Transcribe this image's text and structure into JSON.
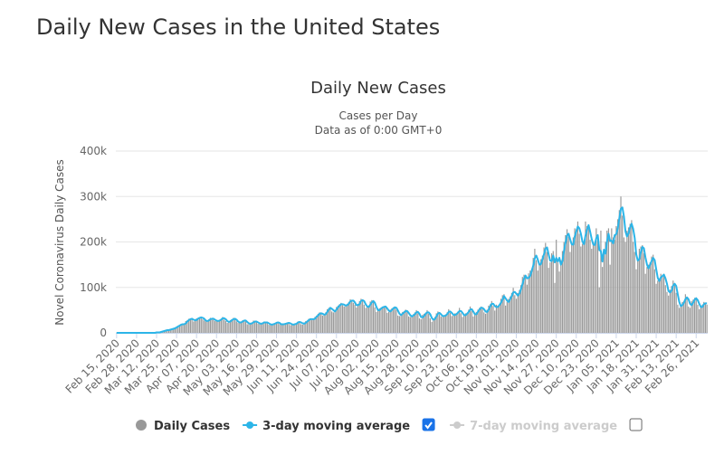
{
  "header": {
    "title": "Daily New Cases in the United States"
  },
  "chart_data": {
    "type": "bar",
    "title": "Daily New Cases",
    "subtitle": [
      "Cases per Day",
      "Data as of 0:00 GMT+0"
    ],
    "y_label": "Novel Coronavirus Daily Cases",
    "ylim": [
      0,
      400000
    ],
    "yticks": [
      0,
      {
        "value": 100000,
        "label": "100k"
      },
      {
        "value": 200000,
        "label": "200k"
      },
      {
        "value": 300000,
        "label": "300k"
      },
      {
        "value": 400000,
        "label": "400k"
      }
    ],
    "grid": true,
    "categories": [
      "Feb 15, 2020",
      null,
      null,
      null,
      null,
      null,
      null,
      null,
      null,
      null,
      null,
      null,
      null,
      "Feb 28, 2020",
      null,
      null,
      null,
      null,
      null,
      null,
      null,
      null,
      null,
      null,
      null,
      null,
      "Mar 12, 2020",
      null,
      null,
      null,
      null,
      null,
      null,
      null,
      null,
      null,
      null,
      null,
      null,
      "Mar 25, 2020",
      null,
      null,
      null,
      null,
      null,
      null,
      null,
      null,
      null,
      null,
      null,
      null,
      "Apr 07, 2020",
      null,
      null,
      null,
      null,
      null,
      null,
      null,
      null,
      null,
      null,
      null,
      null,
      "Apr 20, 2020",
      null,
      null,
      null,
      null,
      null,
      null,
      null,
      null,
      null,
      null,
      null,
      null,
      "May 03, 2020",
      null,
      null,
      null,
      null,
      null,
      null,
      null,
      null,
      null,
      null,
      null,
      null,
      "May 16, 2020",
      null,
      null,
      null,
      null,
      null,
      null,
      null,
      null,
      null,
      null,
      null,
      null,
      "May 29, 2020",
      null,
      null,
      null,
      null,
      null,
      null,
      null,
      null,
      null,
      null,
      null,
      null,
      "Jun 11, 2020",
      null,
      null,
      null,
      null,
      null,
      null,
      null,
      null,
      null,
      null,
      null,
      null,
      "Jun 24, 2020",
      null,
      null,
      null,
      null,
      null,
      null,
      null,
      null,
      null,
      null,
      null,
      null,
      "Jul 07, 2020",
      null,
      null,
      null,
      null,
      null,
      null,
      null,
      null,
      null,
      null,
      null,
      null,
      "Jul 20, 2020",
      null,
      null,
      null,
      null,
      null,
      null,
      null,
      null,
      null,
      null,
      null,
      null,
      "Aug 02, 2020",
      null,
      null,
      null,
      null,
      null,
      null,
      null,
      null,
      null,
      null,
      null,
      null,
      "Aug 15, 2020",
      null,
      null,
      null,
      null,
      null,
      null,
      null,
      null,
      null,
      null,
      null,
      null,
      "Aug 28, 2020",
      null,
      null,
      null,
      null,
      null,
      null,
      null,
      null,
      null,
      null,
      null,
      null,
      "Sep 10, 2020",
      null,
      null,
      null,
      null,
      null,
      null,
      null,
      null,
      null,
      null,
      null,
      null,
      "Sep 23, 2020",
      null,
      null,
      null,
      null,
      null,
      null,
      null,
      null,
      null,
      null,
      null,
      null,
      "Oct 06, 2020",
      null,
      null,
      null,
      null,
      null,
      null,
      null,
      null,
      null,
      null,
      null,
      null,
      "Oct 19, 2020",
      null,
      null,
      null,
      null,
      null,
      null,
      null,
      null,
      null,
      null,
      null,
      null,
      "Nov 01, 2020",
      null,
      null,
      null,
      null,
      null,
      null,
      null,
      null,
      null,
      null,
      null,
      null,
      "Nov 14, 2020",
      null,
      null,
      null,
      null,
      null,
      null,
      null,
      null,
      null,
      null,
      null,
      null,
      "Nov 27, 2020",
      null,
      null,
      null,
      null,
      null,
      null,
      null,
      null,
      null,
      null,
      null,
      null,
      "Dec 10, 2020",
      null,
      null,
      null,
      null,
      null,
      null,
      null,
      null,
      null,
      null,
      null,
      null,
      "Dec 23, 2020",
      null,
      null,
      null,
      null,
      null,
      null,
      null,
      null,
      null,
      null,
      null,
      null,
      "Jan 05, 2021",
      null,
      null,
      null,
      null,
      null,
      null,
      null,
      null,
      null,
      null,
      null,
      null,
      "Jan 18, 2021",
      null,
      null,
      null,
      null,
      null,
      null,
      null,
      null,
      null,
      null,
      null,
      null,
      "Jan 31, 2021",
      null,
      null,
      null,
      null,
      null,
      null,
      null,
      null,
      null,
      null,
      null,
      null,
      "Feb 13, 2021",
      null,
      null,
      null,
      null,
      null,
      null,
      null,
      null,
      null,
      null,
      null,
      null,
      "Feb 26, 2021",
      null,
      null,
      null,
      null,
      null,
      null,
      null
    ],
    "series": [
      {
        "name": "Daily Cases",
        "type": "bar",
        "color": "#999999",
        "values": [
          0,
          0,
          0,
          0,
          0,
          0,
          0,
          0,
          0,
          0,
          0,
          0,
          0,
          0,
          0,
          0,
          0,
          0,
          0,
          0,
          0,
          0,
          0,
          0,
          0,
          1000,
          1000,
          1000,
          2000,
          3000,
          4000,
          5000,
          6000,
          6000,
          7000,
          9000,
          8000,
          10000,
          12000,
          14000,
          16000,
          18000,
          20000,
          18000,
          20000,
          26000,
          28000,
          31000,
          32000,
          31000,
          25000,
          28000,
          32000,
          33000,
          34000,
          35000,
          30000,
          27000,
          25000,
          26000,
          30000,
          33000,
          31000,
          29000,
          26000,
          26000,
          26000,
          29000,
          31000,
          35000,
          29000,
          26000,
          22000,
          25000,
          28000,
          30000,
          33000,
          29000,
          25000,
          22000,
          23000,
          25000,
          28000,
          27000,
          25000,
          19000,
          19000,
          21000,
          22000,
          27000,
          25000,
          24000,
          20000,
          20000,
          21000,
          22000,
          25000,
          23000,
          22000,
          18000,
          17000,
          19000,
          20000,
          22000,
          24000,
          22000,
          19000,
          17000,
          20000,
          20000,
          21000,
          23000,
          22000,
          17000,
          18000,
          18000,
          21000,
          22000,
          25000,
          25000,
          19000,
          18000,
          23000,
          26000,
          27000,
          31000,
          32000,
          28000,
          31000,
          35000,
          38000,
          42000,
          45000,
          43000,
          38000,
          40000,
          45000,
          52000,
          55000,
          57000,
          47000,
          45000,
          50000,
          57000,
          60000,
          63000,
          66000,
          61000,
          58000,
          60000,
          64000,
          68000,
          74000,
          72000,
          66000,
          62000,
          56000,
          64000,
          70000,
          75000,
          72000,
          62000,
          55000,
          57000,
          60000,
          69000,
          72000,
          70000,
          56000,
          46000,
          49000,
          54000,
          56000,
          57000,
          59000,
          58000,
          44000,
          46000,
          51000,
          54000,
          56000,
          58000,
          51000,
          38000,
          37000,
          42000,
          46000,
          47000,
          51000,
          46000,
          36000,
          35000,
          38000,
          41000,
          45000,
          50000,
          43000,
          32000,
          30000,
          40000,
          42000,
          44000,
          50000,
          42000,
          32000,
          24000,
          30000,
          35000,
          43000,
          47000,
          41000,
          36000,
          35000,
          39000,
          40000,
          45000,
          52000,
          44000,
          37000,
          38000,
          43000,
          43000,
          47000,
          55000,
          43000,
          35000,
          38000,
          43000,
          44000,
          51000,
          58000,
          48000,
          36000,
          40000,
          46000,
          51000,
          55000,
          58000,
          53000,
          45000,
          42000,
          51000,
          60000,
          63000,
          70000,
          59000,
          49000,
          62000,
          60000,
          62000,
          75000,
          83000,
          85000,
          60000,
          68000,
          75000,
          80000,
          88000,
          99000,
          83000,
          75000,
          88000,
          94000,
          105000,
          123000,
          128000,
          126000,
          106000,
          131000,
          137000,
          141000,
          165000,
          185000,
          160000,
          137000,
          154000,
          162000,
          170000,
          188000,
          198000,
          178000,
          143000,
          155000,
          175000,
          180000,
          110000,
          205000,
          155000,
          135000,
          160000,
          180000,
          200000,
          215000,
          228000,
          212000,
          178000,
          195000,
          210000,
          230000,
          228000,
          245000,
          218000,
          190000,
          196000,
          200000,
          245000,
          235000,
          230000,
          205000,
          185000,
          195000,
          200000,
          230000,
          215000,
          100000,
          225000,
          145000,
          178000,
          200000,
          225000,
          230000,
          150000,
          230000,
          210000,
          205000,
          235000,
          250000,
          270000,
          300000,
          258000,
          210000,
          200000,
          225000,
          232000,
          240000,
          248000,
          200000,
          178000,
          140000,
          160000,
          185000,
          190000,
          193000,
          175000,
          130000,
          145000,
          150000,
          155000,
          168000,
          172000,
          140000,
          108000,
          115000,
          120000,
          130000,
          125000,
          130000,
          105000,
          90000,
          82000,
          95000,
          103000,
          115000,
          105000,
          88000,
          62000,
          55000,
          60000,
          68000,
          70000,
          85000,
          78000,
          58000,
          55000,
          70000,
          73000,
          77000,
          78000,
          62000,
          52000,
          58000,
          62000,
          68000,
          66000,
          62000
        ]
      },
      {
        "name": "3-day moving average",
        "type": "line",
        "color": "#2cb5e8",
        "visible": true,
        "values": [
          0,
          0,
          0,
          0,
          0,
          0,
          0,
          0,
          0,
          0,
          0,
          0,
          0,
          0,
          0,
          0,
          0,
          0,
          0,
          0,
          0,
          0,
          0,
          0,
          0,
          0,
          1000,
          1000,
          1000,
          2000,
          3000,
          4000,
          5000,
          6000,
          6000,
          7000,
          8000,
          9000,
          10000,
          12000,
          14000,
          16000,
          18000,
          19000,
          19000,
          21000,
          25000,
          28000,
          30000,
          31000,
          29000,
          28000,
          28000,
          31000,
          33000,
          34000,
          33000,
          31000,
          27000,
          26000,
          27000,
          30000,
          31000,
          31000,
          29000,
          27000,
          26000,
          27000,
          29000,
          32000,
          32000,
          30000,
          26000,
          24000,
          25000,
          28000,
          30000,
          31000,
          29000,
          25000,
          23000,
          23000,
          25000,
          27000,
          27000,
          24000,
          21000,
          20000,
          21000,
          23000,
          25000,
          25000,
          23000,
          21000,
          20000,
          21000,
          23000,
          23000,
          23000,
          21000,
          19000,
          18000,
          19000,
          20000,
          22000,
          23000,
          22000,
          19000,
          19000,
          19000,
          20000,
          21000,
          22000,
          21000,
          19000,
          18000,
          19000,
          20000,
          23000,
          24000,
          23000,
          21000,
          20000,
          22000,
          25000,
          28000,
          30000,
          30000,
          30000,
          31000,
          35000,
          38000,
          42000,
          43000,
          42000,
          40000,
          41000,
          46000,
          51000,
          55000,
          53000,
          50000,
          47000,
          51000,
          56000,
          60000,
          63000,
          63000,
          62000,
          60000,
          61000,
          64000,
          69000,
          71000,
          71000,
          67000,
          61000,
          61000,
          63000,
          70000,
          72000,
          70000,
          63000,
          58000,
          57000,
          62000,
          67000,
          70000,
          66000,
          57000,
          50000,
          50000,
          53000,
          56000,
          57000,
          58000,
          54000,
          49000,
          47000,
          50000,
          54000,
          56000,
          55000,
          49000,
          42000,
          39000,
          42000,
          45000,
          48000,
          48000,
          44000,
          39000,
          36000,
          38000,
          41000,
          45000,
          46000,
          42000,
          35000,
          34000,
          37000,
          42000,
          45000,
          45000,
          41000,
          33000,
          29000,
          30000,
          36000,
          42000,
          44000,
          41000,
          37000,
          37000,
          38000,
          41000,
          46000,
          47000,
          44000,
          40000,
          39000,
          41000,
          44000,
          48000,
          48000,
          44000,
          39000,
          39000,
          42000,
          46000,
          51000,
          52000,
          47000,
          41000,
          41000,
          46000,
          51000,
          55000,
          55000,
          52000,
          47000,
          46000,
          51000,
          58000,
          64000,
          64000,
          59000,
          57000,
          57000,
          61000,
          66000,
          73000,
          81000,
          76000,
          71000,
          68000,
          74000,
          81000,
          89000,
          90000,
          86000,
          82000,
          86000,
          96000,
          107000,
          119000,
          126000,
          120000,
          121000,
          125000,
          136000,
          148000,
          164000,
          170000,
          161000,
          150000,
          151000,
          162000,
          173000,
          185000,
          188000,
          173000,
          159000,
          158000,
          170000,
          155000,
          165000,
          157000,
          165000,
          150000,
          158000,
          180000,
          198000,
          214000,
          218000,
          206000,
          195000,
          194000,
          212000,
          223000,
          234000,
          230000,
          218000,
          201000,
          195000,
          214000,
          227000,
          237000,
          223000,
          207000,
          195000,
          193000,
          208000,
          215000,
          182000,
          180000,
          157000,
          183000,
          174000,
          201000,
          218000,
          202000,
          203000,
          197000,
          215000,
          217000,
          230000,
          252000,
          273000,
          276000,
          256000,
          223000,
          212000,
          219000,
          232000,
          240000,
          229000,
          209000,
          173000,
          159000,
          162000,
          178000,
          189000,
          186000,
          166000,
          150000,
          142000,
          150000,
          158000,
          165000,
          160000,
          140000,
          121000,
          114000,
          122000,
          125000,
          128000,
          120000,
          108000,
          92000,
          89000,
          93000,
          104000,
          108000,
          103000,
          85000,
          68000,
          59000,
          61000,
          66000,
          74000,
          78000,
          74000,
          64000,
          61000,
          66000,
          73000,
          76000,
          72000,
          64000,
          57000,
          57000,
          63000,
          65000,
          65000
        ]
      },
      {
        "name": "7-day moving average",
        "type": "line",
        "color": "#cccccc",
        "visible": false
      }
    ]
  }
}
